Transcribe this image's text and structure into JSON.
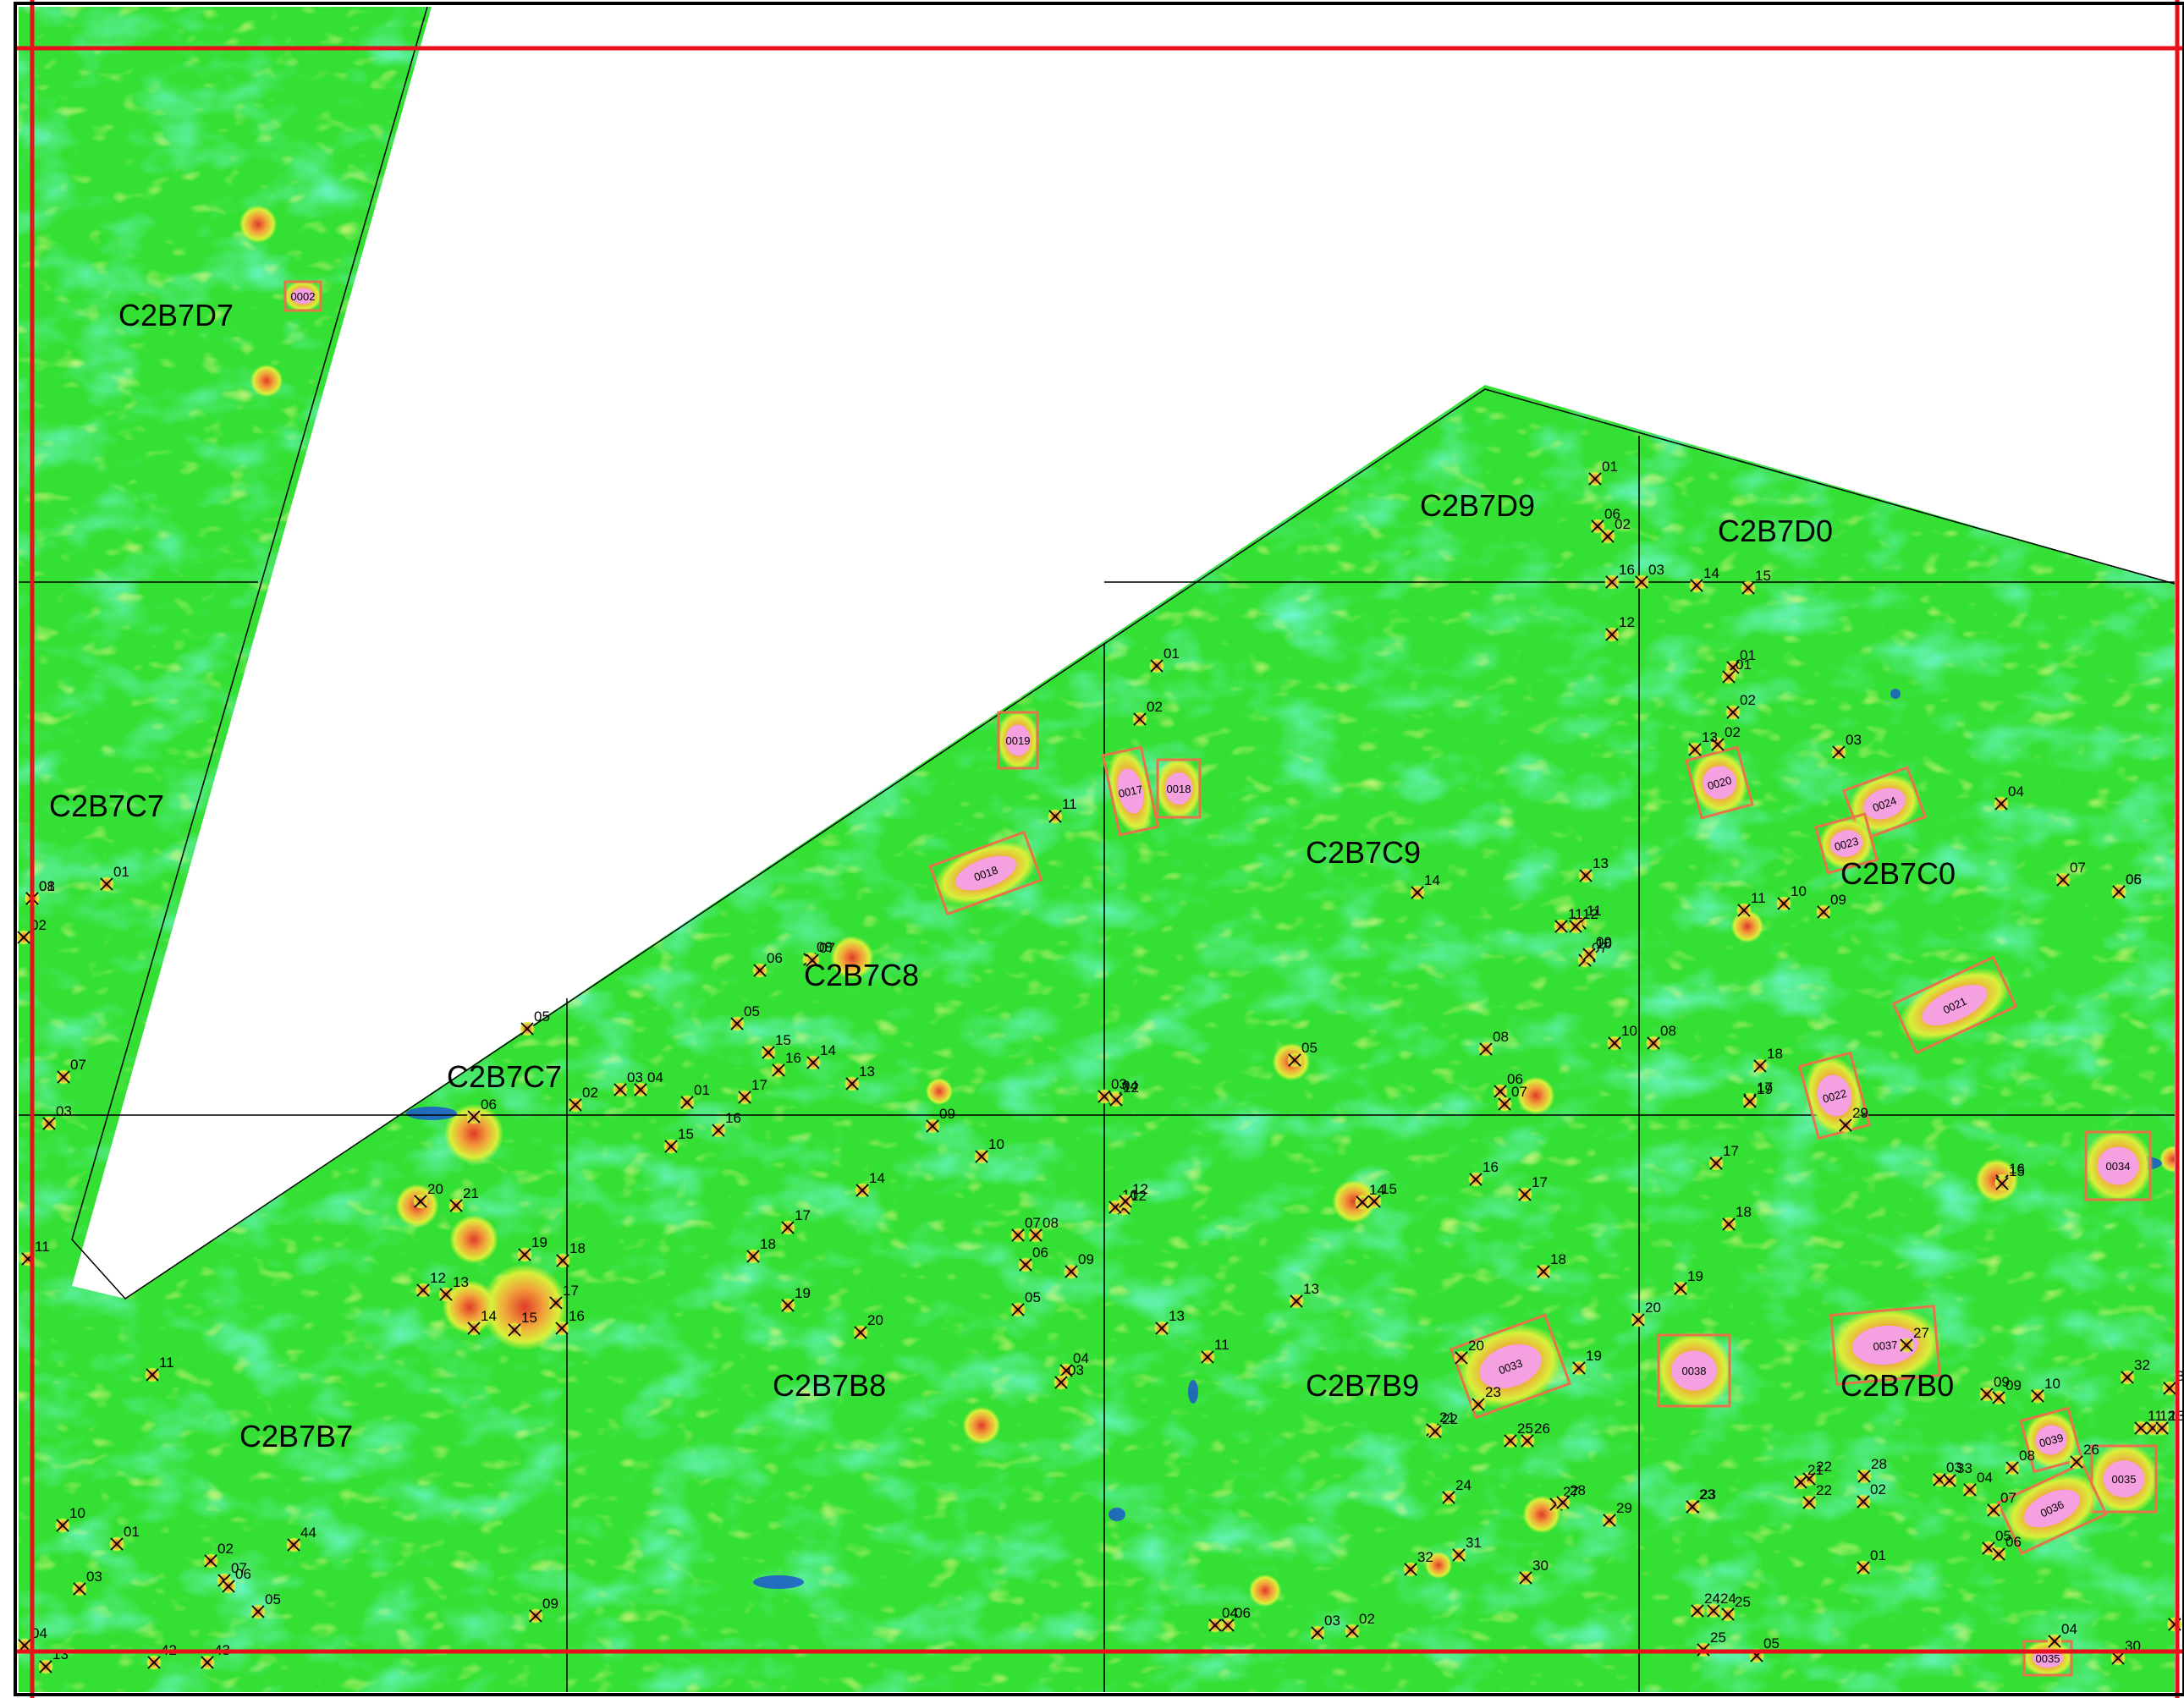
{
  "colors": {
    "background_field": "#35e035",
    "low_field": "#2ef2c8",
    "very_low": "#1a4fd6",
    "moderate": "#d8f03a",
    "high": "#f2a23a",
    "peak": "#e03a2a",
    "anomaly_fill": "#f5a0e0",
    "anomaly_outline": "#e8734a",
    "survey_boundary": "#e8101a",
    "grid_lines": "#000000",
    "blank_area": "#ffffff"
  },
  "grid_cells": [
    "C2B7D7",
    "C2B7C7",
    "C2B7D9",
    "C2B7D0",
    "C2B7C8",
    "C2B7C9",
    "C2B7C0",
    "C2B7C7",
    "C2B7B7",
    "C2B7B8",
    "C2B7B9",
    "C2B7B0"
  ],
  "anomalies": [
    "0002",
    "0017",
    "0018",
    "0019",
    "0018",
    "0020",
    "0024",
    "0023",
    "0021",
    "0022",
    "0034",
    "0033",
    "0038",
    "0037",
    "0039",
    "0035",
    "0036",
    "0035"
  ],
  "targets": [
    "01",
    "08",
    "01",
    "02",
    "07",
    "03",
    "11",
    "11",
    "10",
    "03",
    "01",
    "02",
    "07",
    "06",
    "05",
    "04",
    "13",
    "42",
    "43",
    "44",
    "05",
    "06",
    "20",
    "21",
    "12",
    "13",
    "19",
    "14",
    "15",
    "18",
    "17",
    "16",
    "09",
    "02",
    "03",
    "04",
    "01",
    "17",
    "16",
    "15",
    "05",
    "06",
    "08",
    "07",
    "15",
    "16",
    "14",
    "13",
    "09",
    "10",
    "13",
    "12",
    "14",
    "17",
    "18",
    "19",
    "20",
    "01",
    "02",
    "11",
    "07",
    "08",
    "06",
    "05",
    "04",
    "03",
    "09",
    "10",
    "12",
    "11",
    "03",
    "04",
    "12",
    "01",
    "02",
    "06",
    "07",
    "08",
    "10",
    "11",
    "05",
    "04",
    "06",
    "03",
    "02",
    "14",
    "15",
    "16",
    "17",
    "18",
    "13",
    "20",
    "19",
    "21",
    "22",
    "23",
    "25",
    "26",
    "24",
    "27",
    "28",
    "29",
    "30",
    "31",
    "32",
    "14",
    "13",
    "12",
    "11",
    "10",
    "09",
    "08",
    "06",
    "07",
    "01",
    "02",
    "03",
    "14",
    "15",
    "16",
    "12",
    "17",
    "18",
    "19",
    "20",
    "23",
    "24",
    "25",
    "22",
    "21",
    "28",
    "27",
    "01",
    "02",
    "13",
    "03",
    "04",
    "07",
    "06",
    "05",
    "11",
    "10",
    "09",
    "18",
    "17",
    "19",
    "29",
    "16",
    "15",
    "09",
    "09",
    "10",
    "11",
    "12",
    "13",
    "32",
    "31",
    "08",
    "26",
    "03",
    "33",
    "04",
    "07",
    "05",
    "06",
    "01",
    "02",
    "22",
    "23",
    "24",
    "25",
    "05",
    "04",
    "30",
    "24",
    "21"
  ]
}
